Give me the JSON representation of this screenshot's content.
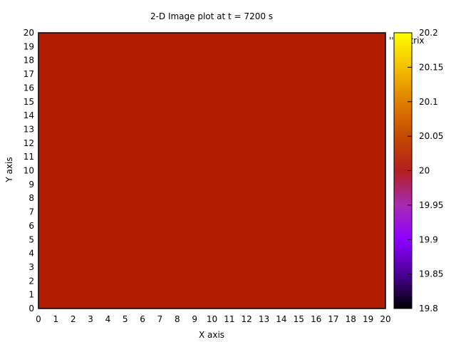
{
  "chart_data": {
    "type": "heatmap",
    "title": "2-D Image plot at t = 7200 s",
    "xlabel": "X axis",
    "ylabel": "Y axis",
    "xlim": [
      0,
      20
    ],
    "ylim": [
      0,
      20
    ],
    "x_ticks": [
      "0",
      "1",
      "2",
      "3",
      "4",
      "5",
      "6",
      "7",
      "8",
      "9",
      "10",
      "11",
      "12",
      "13",
      "14",
      "15",
      "16",
      "17",
      "18",
      "19",
      "20"
    ],
    "y_ticks": [
      "0",
      "1",
      "2",
      "3",
      "4",
      "5",
      "6",
      "7",
      "8",
      "9",
      "10",
      "11",
      "12",
      "13",
      "14",
      "15",
      "16",
      "17",
      "18",
      "19",
      "20"
    ],
    "value": 20.0,
    "grid": false,
    "legend_fragment": "'' matrix",
    "colorbar": {
      "range": [
        19.8,
        20.2
      ],
      "ticks": [
        "19.8",
        "19.85",
        "19.9",
        "19.95",
        "20",
        "20.05",
        "20.1",
        "20.15",
        "20.2"
      ],
      "palette": [
        "#000000",
        "#4b0096",
        "#8f00ff",
        "#a62bb5",
        "#b31e1e",
        "#c44b00",
        "#e07f00",
        "#f5bf00",
        "#ffff00"
      ]
    },
    "field_color": "#b21e00"
  }
}
